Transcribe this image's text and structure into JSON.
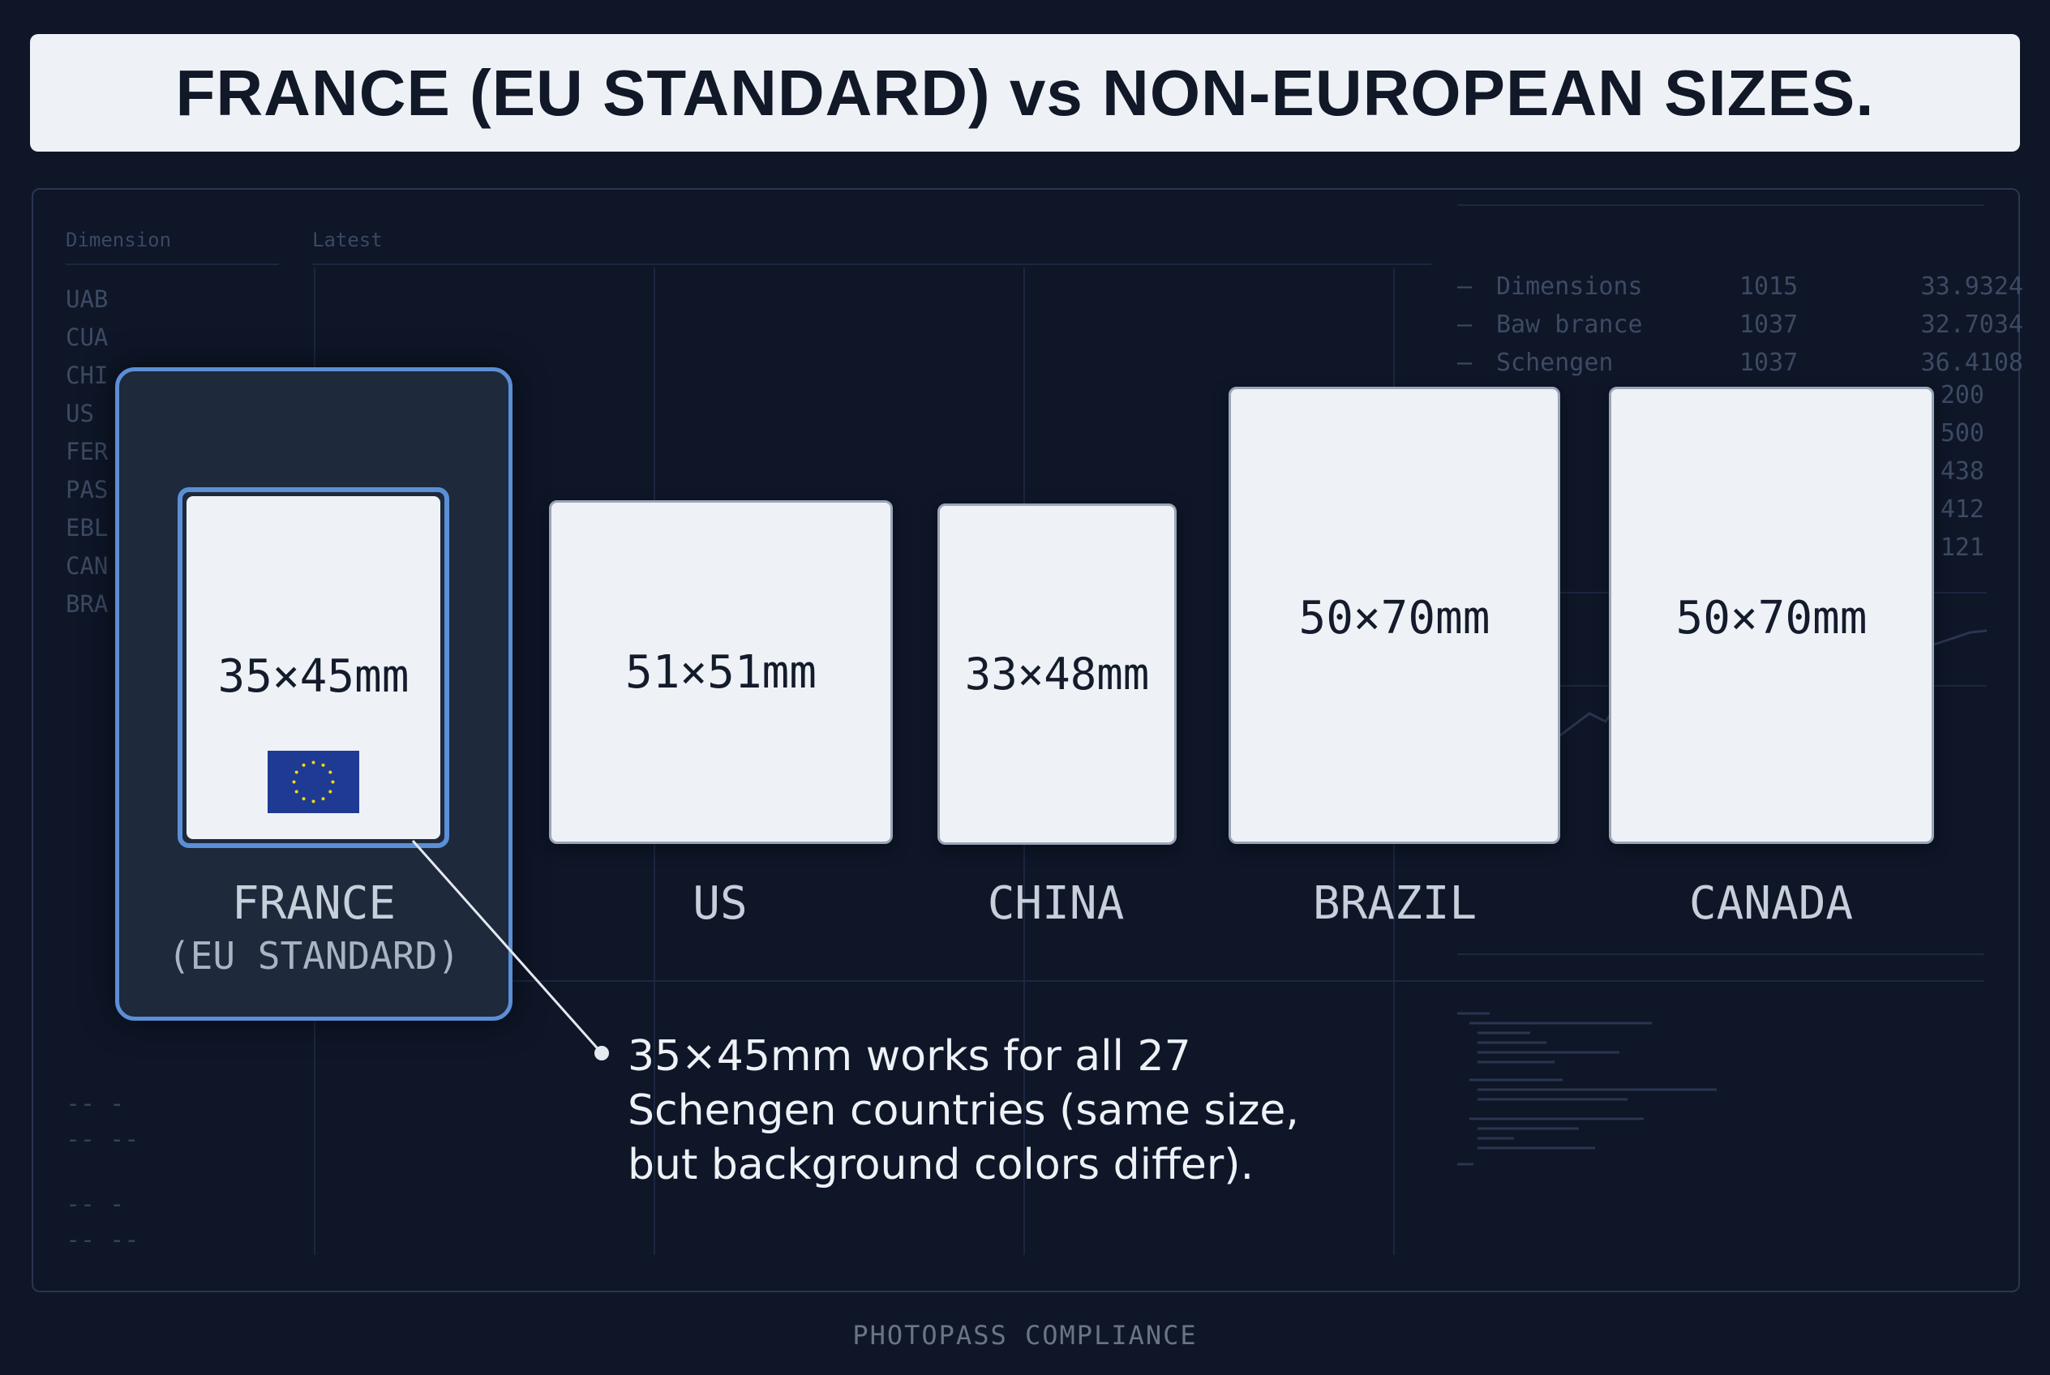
{
  "title": "FRANCE (EU STANDARD) vs NON-EUROPEAN SIZES.",
  "background_table": {
    "headers": [
      "Dimension",
      "Latest"
    ],
    "rows": [
      "UAB",
      "CUA",
      "CHI",
      "US",
      "FER",
      "PAS",
      "EBL",
      "CAN",
      "BRA"
    ]
  },
  "background_legend": [
    {
      "name": "Dimensions",
      "count": "1015",
      "value": "33.9324"
    },
    {
      "name": "Baw brance",
      "count": "1037",
      "value": "32.7034"
    },
    {
      "name": "Schengen",
      "count": "1037",
      "value": "36.4108"
    }
  ],
  "background_values": [
    "200",
    "500",
    "438",
    "412",
    "121"
  ],
  "bg_dashes": [
    "-- -",
    "-- --",
    "-- -",
    "-- --"
  ],
  "photos": [
    {
      "country": "FRANCE",
      "sub": "(EU STANDARD)",
      "size": "35×45mm",
      "highlight": true
    },
    {
      "country": "US",
      "size": "51×51mm"
    },
    {
      "country": "CHINA",
      "size": "33×48mm"
    },
    {
      "country": "BRAZIL",
      "size": "50×70mm"
    },
    {
      "country": "CANADA",
      "size": "50×70mm"
    }
  ],
  "callout": [
    "35×45mm works for all 27",
    "Schengen countries (same size,",
    "but background colors differ)."
  ],
  "footer": "PHOTOPASS COMPLIANCE",
  "colors": {
    "accent": "#5b8fd6",
    "background": "#0e1628",
    "eu_flag": "#1f3a93",
    "eu_star": "#f5d90a"
  }
}
